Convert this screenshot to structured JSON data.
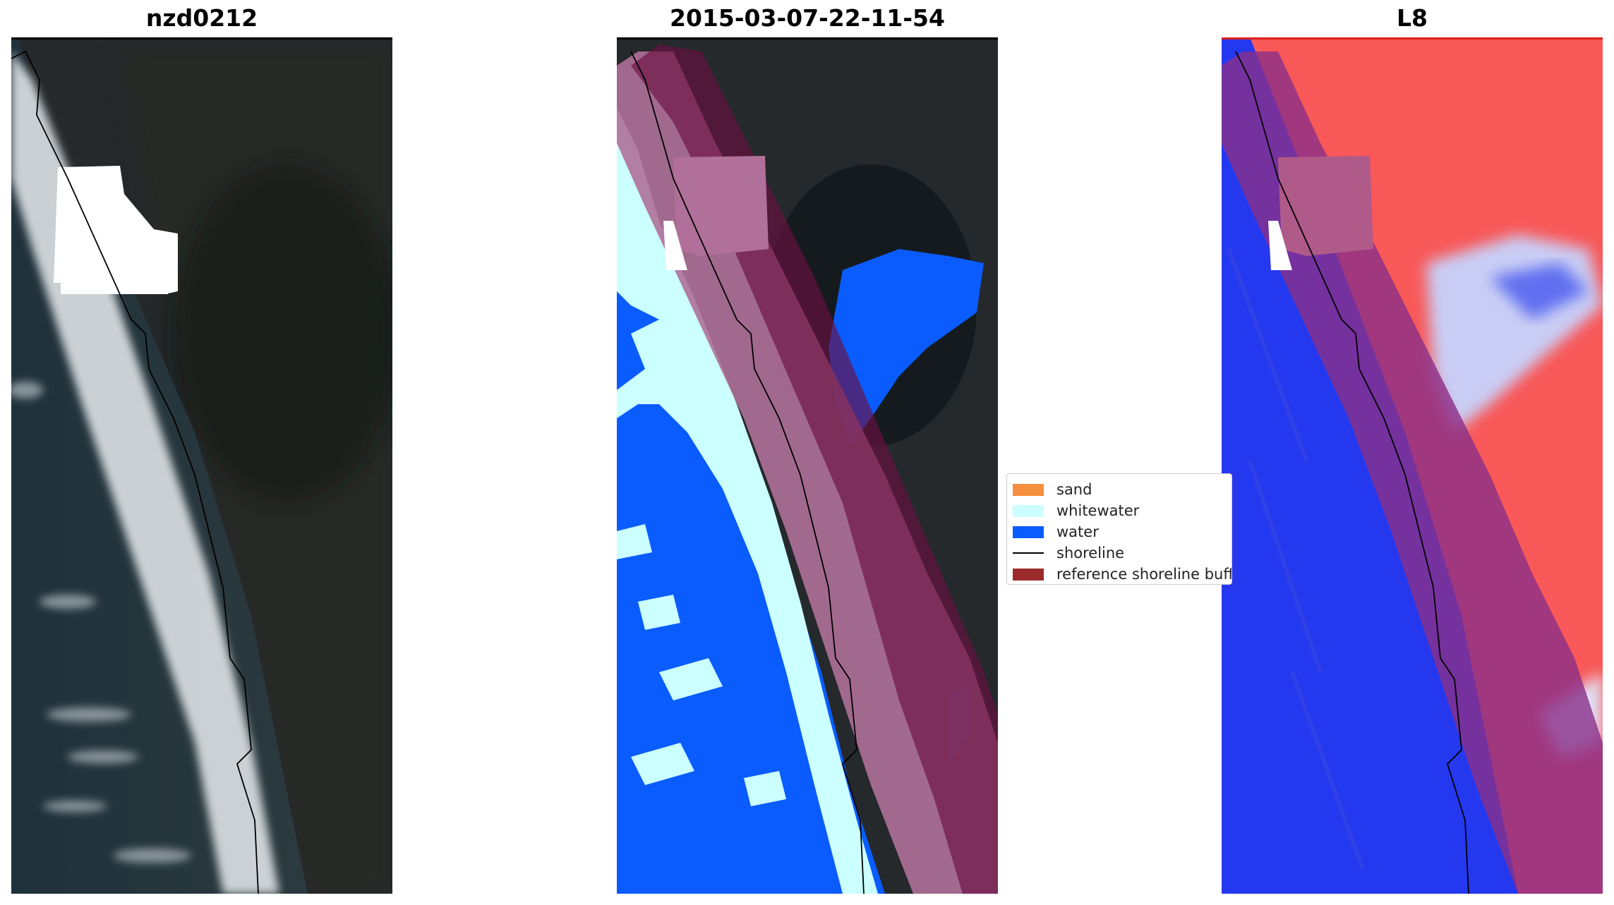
{
  "panels": [
    {
      "title": "nzd0212"
    },
    {
      "title": "2015-03-07-22-11-54"
    },
    {
      "title": "L8"
    }
  ],
  "legend": {
    "items": [
      {
        "label": "sand",
        "kind": "patch",
        "color": "#f58f3d"
      },
      {
        "label": "whitewater",
        "kind": "patch",
        "color": "#ccffff"
      },
      {
        "label": "water",
        "kind": "patch",
        "color": "#0a5cff"
      },
      {
        "label": "shoreline",
        "kind": "line",
        "color": "#000000"
      },
      {
        "label": "reference shoreline buffer",
        "kind": "patch",
        "color": "#9b2b2b"
      }
    ]
  },
  "colors": {
    "land_dark": "#22262a",
    "ocean_dark": "#1e2c34",
    "surf_white": "#e8ecef",
    "water_class": "#0a5cff",
    "whitewater_class": "#ccffff",
    "buffer_overlay": "#b07099",
    "buffer_dark": "#6a1040",
    "index_red": "#f85858",
    "index_blue": "#2438f0"
  }
}
